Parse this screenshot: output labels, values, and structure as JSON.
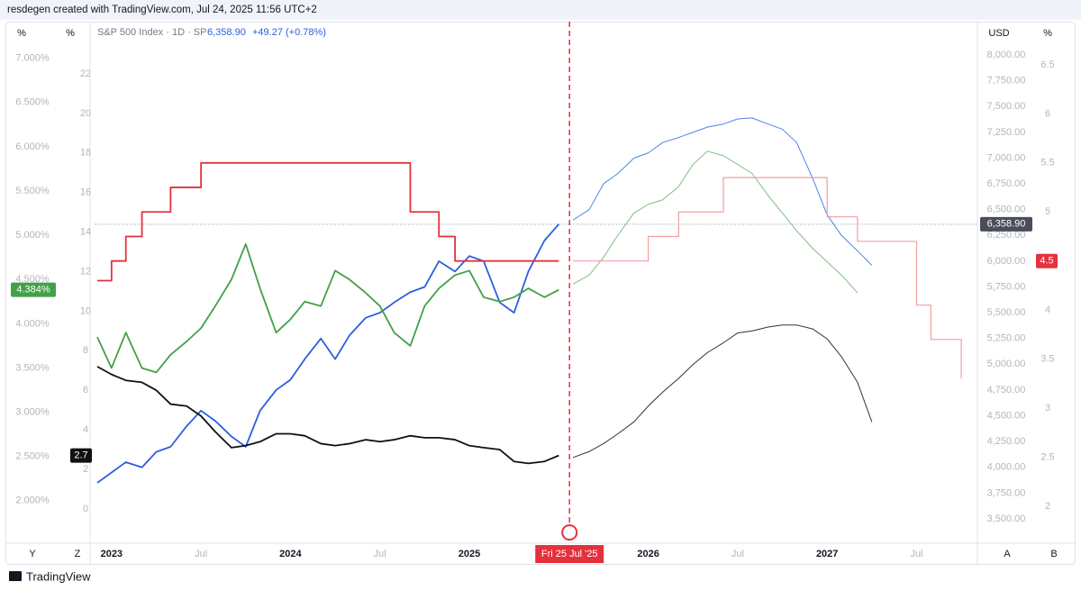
{
  "header": {
    "attribution": "resdegen created with TradingView.com, Jul 24, 2025 11:56 UTC+2",
    "left_units": [
      "%",
      "%"
    ],
    "right_units": [
      "USD",
      "%"
    ],
    "bottom_left": [
      "Y",
      "Z"
    ],
    "bottom_right": [
      "A",
      "B"
    ],
    "footer": "TradingView"
  },
  "chart_data": {
    "type": "line",
    "legend": {
      "symbol": "S&P 500 Index · 1D · SP",
      "price": "6,358.90",
      "change": "+49.27 (+0.78%)"
    },
    "x": [
      2022.92,
      2023.0,
      2023.08,
      2023.17,
      2023.25,
      2023.33,
      2023.42,
      2023.5,
      2023.58,
      2023.67,
      2023.75,
      2023.83,
      2023.92,
      2024.0,
      2024.08,
      2024.17,
      2024.25,
      2024.33,
      2024.42,
      2024.5,
      2024.58,
      2024.67,
      2024.75,
      2024.83,
      2024.92,
      2025.0,
      2025.08,
      2025.17,
      2025.25,
      2025.33,
      2025.42,
      2025.5,
      2025.58,
      2025.67,
      2025.75,
      2025.83,
      2025.92,
      2026.0,
      2026.08,
      2026.17,
      2026.25,
      2026.33,
      2026.42,
      2026.5,
      2026.58,
      2026.67,
      2026.75,
      2026.83,
      2026.92,
      2027.0,
      2027.08,
      2027.17,
      2027.25,
      2027.33,
      2027.42,
      2027.5,
      2027.58,
      2027.67,
      2027.75
    ],
    "xlim": [
      2022.88,
      2027.84
    ],
    "xticks": [
      {
        "value": 2023,
        "label": "2023"
      },
      {
        "value": 2023.5,
        "label": "Jul"
      },
      {
        "value": 2024,
        "label": "2024"
      },
      {
        "value": 2024.5,
        "label": "Jul"
      },
      {
        "value": 2025,
        "label": "2025"
      },
      {
        "value": 2026,
        "label": "2026"
      },
      {
        "value": 2026.5,
        "label": "Jul"
      },
      {
        "value": 2027,
        "label": "2027"
      },
      {
        "value": 2027.5,
        "label": "Jul"
      }
    ],
    "ylim": [
      1.55,
      7.17
    ],
    "yticks": [
      {
        "value": 2,
        "label": "2.000%"
      },
      {
        "value": 2.5,
        "label": "2.500%"
      },
      {
        "value": 3,
        "label": "3.000%"
      },
      {
        "value": 3.5,
        "label": "3.500%"
      },
      {
        "value": 4,
        "label": "4.000%"
      },
      {
        "value": 4.5,
        "label": "4.500%"
      },
      {
        "value": 5,
        "label": "5.000%"
      },
      {
        "value": 5.5,
        "label": "5.500%"
      },
      {
        "value": 6,
        "label": "6.000%"
      },
      {
        "value": 6.5,
        "label": "6.500%"
      },
      {
        "value": 7,
        "label": "7.000%"
      }
    ],
    "y3lim": [
      -1.6,
      23.55
    ],
    "y3ticks": [
      0,
      2,
      4,
      6,
      8,
      10,
      12,
      14,
      16,
      18,
      20,
      22
    ],
    "y2lim": [
      3290,
      8114
    ],
    "y2ticks": [
      {
        "value": 3500,
        "label": "3,500.00"
      },
      {
        "value": 3750,
        "label": "3,750.00"
      },
      {
        "value": 4000,
        "label": "4,000.00"
      },
      {
        "value": 4250,
        "label": "4,250.00"
      },
      {
        "value": 4500,
        "label": "4,500.00"
      },
      {
        "value": 4750,
        "label": "4,750.00"
      },
      {
        "value": 5000,
        "label": "5,000.00"
      },
      {
        "value": 5250,
        "label": "5,250.00"
      },
      {
        "value": 5500,
        "label": "5,500.00"
      },
      {
        "value": 5750,
        "label": "5,750.00"
      },
      {
        "value": 6000,
        "label": "6,000.00"
      },
      {
        "value": 6250,
        "label": "6,250.00"
      },
      {
        "value": 6500,
        "label": "6,500.00"
      },
      {
        "value": 6750,
        "label": "6,750.00"
      },
      {
        "value": 7000,
        "label": "7,000.00"
      },
      {
        "value": 7250,
        "label": "7,250.00"
      },
      {
        "value": 7500,
        "label": "7,500.00"
      },
      {
        "value": 7750,
        "label": "7,750.00"
      },
      {
        "value": 8000,
        "label": "8,000.00"
      }
    ],
    "y4lim": [
      1.65,
      6.72
    ],
    "y4ticks": [
      2,
      2.5,
      3,
      3.5,
      4,
      4.5,
      5,
      5.5,
      6,
      6.5
    ],
    "series": [
      {
        "color": "#2a5fe0",
        "axis": "y2",
        "width": 1.8,
        "values": [
          3850,
          3950,
          4050,
          4000,
          4150,
          4200,
          4400,
          4550,
          4450,
          4300,
          4200,
          4550,
          4750,
          4850,
          5050,
          5250,
          5050,
          5280,
          5450,
          5500,
          5600,
          5700,
          5750,
          6000,
          5900,
          6050,
          6000,
          5600,
          5500,
          5900,
          6200,
          6358.9,
          null,
          null,
          null,
          null,
          null,
          null,
          null,
          null,
          null,
          null,
          null,
          null,
          null,
          null,
          null,
          null,
          null,
          null,
          null,
          null,
          null,
          null,
          null,
          null,
          null,
          null,
          null
        ]
      },
      {
        "color": "#4a86e8",
        "axis": "y2",
        "width": 1,
        "values": [
          null,
          null,
          null,
          null,
          null,
          null,
          null,
          null,
          null,
          null,
          null,
          null,
          null,
          null,
          null,
          null,
          null,
          null,
          null,
          null,
          null,
          null,
          null,
          null,
          null,
          null,
          null,
          null,
          null,
          null,
          null,
          null,
          6400,
          6500,
          6750,
          6850,
          7000,
          7050,
          7150,
          7200,
          7250,
          7300,
          7330,
          7380,
          7390,
          7330,
          7280,
          7150,
          6800,
          6450,
          6250,
          6100,
          5960,
          null,
          null,
          null,
          null,
          null,
          null
        ]
      },
      {
        "color": "#43a047",
        "axis": "y",
        "width": 1.8,
        "values": [
          3.85,
          3.5,
          3.9,
          3.5,
          3.45,
          3.65,
          3.8,
          3.95,
          4.2,
          4.5,
          4.9,
          4.4,
          3.9,
          4.05,
          4.25,
          4.2,
          4.6,
          4.5,
          4.35,
          4.2,
          3.9,
          3.75,
          4.2,
          4.4,
          4.55,
          4.6,
          4.3,
          4.25,
          4.3,
          4.4,
          4.3,
          4.384,
          null,
          null,
          null,
          null,
          null,
          null,
          null,
          null,
          null,
          null,
          null,
          null,
          null,
          null,
          null,
          null,
          null,
          null,
          null,
          null,
          null,
          null,
          null,
          null,
          null,
          null,
          null
        ]
      },
      {
        "color": "#7fbf82",
        "axis": "y",
        "width": 1,
        "values": [
          null,
          null,
          null,
          null,
          null,
          null,
          null,
          null,
          null,
          null,
          null,
          null,
          null,
          null,
          null,
          null,
          null,
          null,
          null,
          null,
          null,
          null,
          null,
          null,
          null,
          null,
          null,
          null,
          null,
          null,
          null,
          null,
          4.45,
          4.55,
          4.75,
          5.0,
          5.25,
          5.35,
          5.4,
          5.55,
          5.8,
          5.95,
          5.9,
          5.8,
          5.7,
          5.45,
          5.25,
          5.05,
          4.85,
          4.7,
          4.55,
          4.35,
          null,
          null,
          null,
          null,
          null,
          null,
          null
        ]
      },
      {
        "color": "#e5313d",
        "axis": "y4",
        "width": 1.8,
        "step": true,
        "values": [
          4.3,
          4.5,
          4.75,
          5.0,
          5.0,
          5.25,
          5.25,
          5.5,
          5.5,
          5.5,
          5.5,
          5.5,
          5.5,
          5.5,
          5.5,
          5.5,
          5.5,
          5.5,
          5.5,
          5.5,
          5.5,
          5.0,
          5.0,
          4.75,
          4.5,
          4.5,
          4.5,
          4.5,
          4.5,
          4.5,
          4.5,
          4.5,
          null,
          null,
          null,
          null,
          null,
          null,
          null,
          null,
          null,
          null,
          null,
          null,
          null,
          null,
          null,
          null,
          null,
          null,
          null,
          null,
          null,
          null,
          null,
          null,
          null,
          null,
          null
        ]
      },
      {
        "color": "#f29da2",
        "axis": "y4",
        "width": 1.2,
        "step": true,
        "values": [
          null,
          null,
          null,
          null,
          null,
          null,
          null,
          null,
          null,
          null,
          null,
          null,
          null,
          null,
          null,
          null,
          null,
          null,
          null,
          null,
          null,
          null,
          null,
          null,
          null,
          null,
          null,
          null,
          null,
          null,
          null,
          null,
          4.5,
          4.5,
          4.5,
          4.5,
          4.5,
          4.75,
          4.75,
          5.0,
          5.0,
          5.0,
          5.35,
          5.35,
          5.35,
          5.35,
          5.35,
          5.35,
          5.35,
          4.95,
          4.95,
          4.7,
          4.7,
          4.7,
          4.7,
          4.05,
          3.7,
          3.7,
          3.3
        ]
      },
      {
        "color": "#111111",
        "axis": "y3",
        "width": 1.8,
        "values": [
          7.2,
          6.8,
          6.5,
          6.4,
          6.0,
          5.3,
          5.2,
          4.7,
          3.9,
          3.1,
          3.2,
          3.4,
          3.8,
          3.8,
          3.7,
          3.3,
          3.2,
          3.3,
          3.5,
          3.4,
          3.5,
          3.7,
          3.6,
          3.6,
          3.5,
          3.2,
          3.1,
          3.0,
          2.4,
          2.3,
          2.4,
          2.7,
          null,
          null,
          null,
          null,
          null,
          null,
          null,
          null,
          null,
          null,
          null,
          null,
          null,
          null,
          null,
          null,
          null,
          null,
          null,
          null,
          null,
          null,
          null,
          null,
          null,
          null,
          null
        ]
      },
      {
        "color": "#333333",
        "axis": "y3",
        "width": 1,
        "values": [
          null,
          null,
          null,
          null,
          null,
          null,
          null,
          null,
          null,
          null,
          null,
          null,
          null,
          null,
          null,
          null,
          null,
          null,
          null,
          null,
          null,
          null,
          null,
          null,
          null,
          null,
          null,
          null,
          null,
          null,
          null,
          null,
          2.6,
          2.9,
          3.3,
          3.8,
          4.4,
          5.2,
          5.9,
          6.6,
          7.3,
          7.9,
          8.4,
          8.9,
          9.0,
          9.2,
          9.3,
          9.3,
          9.1,
          8.6,
          7.7,
          6.4,
          4.4,
          null,
          null,
          null,
          null,
          null,
          null
        ]
      }
    ],
    "price_labels": [
      {
        "value": 6358.9,
        "label": "6,358.90",
        "axis": "y2",
        "color": "#4a4e5a",
        "side": "right"
      },
      {
        "value": 4.5,
        "label": "4.5",
        "axis": "y4",
        "color": "#e5313d",
        "side": "right2"
      },
      {
        "value": 4.384,
        "label": "4.384%",
        "axis": "y",
        "color": "#43a047",
        "side": "left"
      },
      {
        "value": 2.7,
        "label": "2.7",
        "axis": "y3",
        "color": "#111111",
        "side": "left2"
      }
    ],
    "price_line": {
      "value": 6358.9,
      "axis": "y2"
    },
    "cursor": {
      "x": 2025.56,
      "label": "Fri 25 Jul '25",
      "color": "#e5313d"
    }
  }
}
